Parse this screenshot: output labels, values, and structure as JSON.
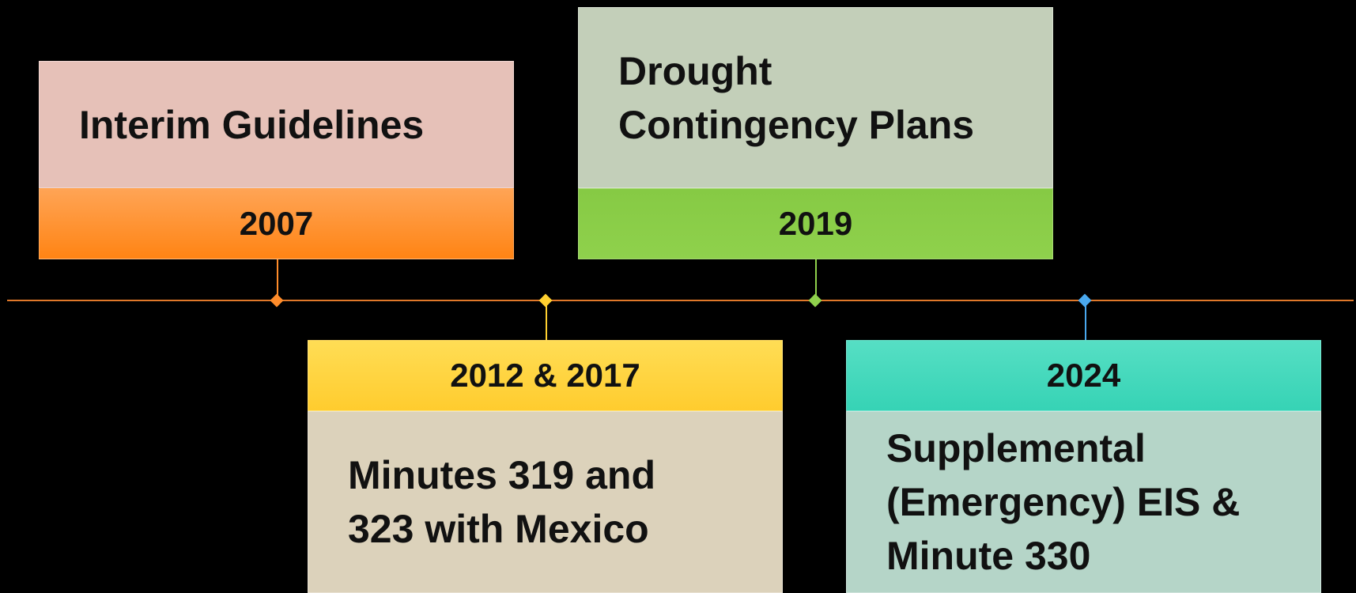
{
  "events": [
    {
      "year": "2007",
      "label": [
        "Interim Guidelines"
      ]
    },
    {
      "year": "2012 & 2017",
      "label": [
        "Minutes 319 and",
        "323 with Mexico"
      ]
    },
    {
      "year": "2019",
      "label": [
        "Drought",
        "Contingency Plans"
      ]
    },
    {
      "year": "2024",
      "label": [
        "Supplemental",
        "(Emergency) EIS &",
        "Minute 330"
      ]
    }
  ]
}
